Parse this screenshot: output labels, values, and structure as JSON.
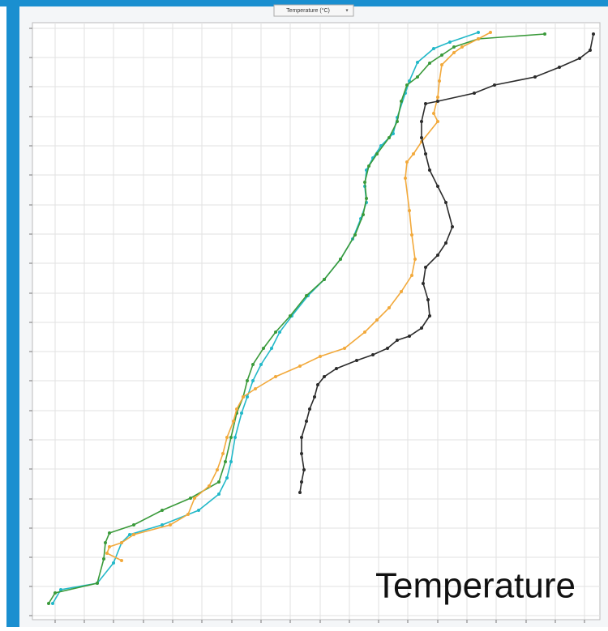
{
  "chart_data": {
    "type": "line",
    "selector": "Temperature (°C)",
    "annotation": "Temperature",
    "xlim": [
      40,
      740
    ],
    "ylim": [
      765,
      28
    ],
    "xticks": [
      68,
      104,
      140,
      177,
      213,
      249,
      286,
      322,
      358,
      395,
      431,
      467,
      503,
      540,
      576,
      612,
      649,
      685,
      721
    ],
    "yticks": [
      35,
      71,
      107,
      144,
      180,
      216,
      253,
      289,
      325,
      362,
      398,
      434,
      470,
      507,
      543,
      579,
      616,
      652,
      688,
      724,
      760
    ],
    "grid": true,
    "series": [
      {
        "color": "#22b8c8",
        "x": [
          590,
          555,
          535,
          515,
          505,
          500,
          490,
          485,
          470,
          460,
          452,
          450,
          452,
          445,
          435,
          420,
          400,
          380,
          360,
          345,
          335,
          322,
          312,
          305,
          298,
          290,
          285,
          280,
          270,
          245,
          200,
          160,
          150,
          140,
          120,
          75,
          65
        ],
        "values": [
          40,
          52,
          60,
          77,
          100,
          115,
          145,
          165,
          180,
          195,
          210,
          230,
          250,
          270,
          295,
          320,
          345,
          365,
          390,
          410,
          430,
          450,
          470,
          490,
          510,
          540,
          570,
          590,
          610,
          630,
          648,
          660,
          670,
          695,
          720,
          728,
          745
        ]
      },
      {
        "color": "#3a9a3a",
        "x": [
          672,
          590,
          560,
          545,
          530,
          515,
          502,
          495,
          490,
          480,
          465,
          455,
          450,
          452,
          448,
          438,
          420,
          400,
          378,
          358,
          340,
          325,
          312,
          305,
          300,
          292,
          285,
          278,
          270,
          235,
          200,
          165,
          135,
          130,
          128,
          120,
          68,
          60
        ],
        "values": [
          42,
          48,
          58,
          68,
          78,
          95,
          105,
          125,
          150,
          170,
          190,
          205,
          225,
          245,
          265,
          290,
          320,
          345,
          365,
          390,
          410,
          430,
          450,
          470,
          490,
          510,
          540,
          570,
          595,
          615,
          630,
          648,
          658,
          670,
          690,
          720,
          732,
          745
        ]
      },
      {
        "color": "#f2a93b",
        "x": [
          605,
          590,
          570,
          560,
          545,
          542,
          540,
          535,
          540,
          520,
          510,
          502,
          500,
          505,
          508,
          512,
          508,
          495,
          480,
          465,
          450,
          425,
          395,
          370,
          340,
          315,
          300,
          292,
          288,
          280,
          275,
          268,
          258,
          240,
          232,
          210,
          165,
          150,
          135,
          132,
          150
        ],
        "values": [
          40,
          48,
          58,
          65,
          80,
          100,
          120,
          140,
          150,
          175,
          190,
          200,
          220,
          260,
          290,
          320,
          340,
          360,
          380,
          395,
          410,
          430,
          440,
          452,
          465,
          480,
          490,
          505,
          520,
          540,
          560,
          580,
          600,
          615,
          635,
          648,
          660,
          670,
          675,
          683,
          692
        ]
      },
      {
        "color": "#2b2b2b",
        "x": [
          732,
          728,
          715,
          690,
          660,
          610,
          585,
          540,
          525,
          520,
          520,
          525,
          530,
          540,
          550,
          558,
          550,
          540,
          525,
          522,
          528,
          530,
          520,
          505,
          490,
          478,
          460,
          440,
          415,
          400,
          392,
          388,
          382,
          378,
          372,
          372,
          375,
          372,
          370
        ],
        "values": [
          42,
          62,
          72,
          83,
          95,
          105,
          115,
          125,
          128,
          150,
          170,
          190,
          210,
          230,
          250,
          280,
          300,
          315,
          330,
          350,
          370,
          390,
          405,
          415,
          420,
          430,
          438,
          445,
          455,
          465,
          475,
          490,
          505,
          520,
          540,
          560,
          580,
          595,
          608
        ]
      }
    ]
  }
}
